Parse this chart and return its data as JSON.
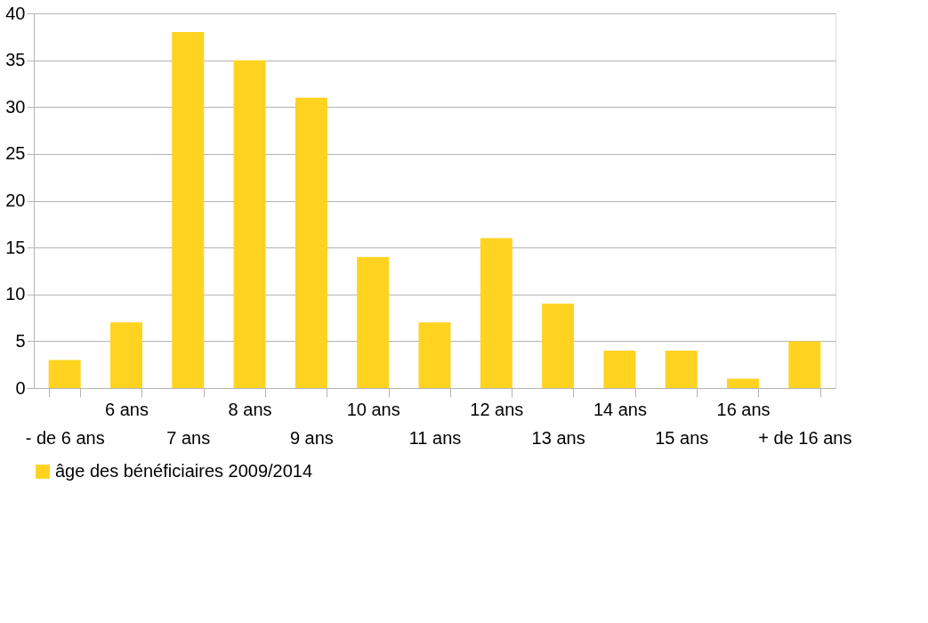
{
  "chart_data": {
    "type": "bar",
    "categories": [
      "- de 6 ans",
      "6 ans",
      "7 ans",
      "8 ans",
      "9 ans",
      "10 ans",
      "11 ans",
      "12 ans",
      "13 ans",
      "14 ans",
      "15 ans",
      "16 ans",
      "+ de 16 ans"
    ],
    "series": [
      {
        "name": "âge des bénéficiaires 2009/2014",
        "color": "#ffd320",
        "values": [
          3,
          7,
          38,
          35,
          31,
          14,
          7,
          16,
          9,
          4,
          4,
          1,
          5
        ]
      }
    ],
    "ylim": [
      0,
      40
    ],
    "yticks": [
      0,
      5,
      10,
      15,
      20,
      25,
      30,
      35,
      40
    ],
    "grid": "y",
    "legend": "bottom"
  }
}
